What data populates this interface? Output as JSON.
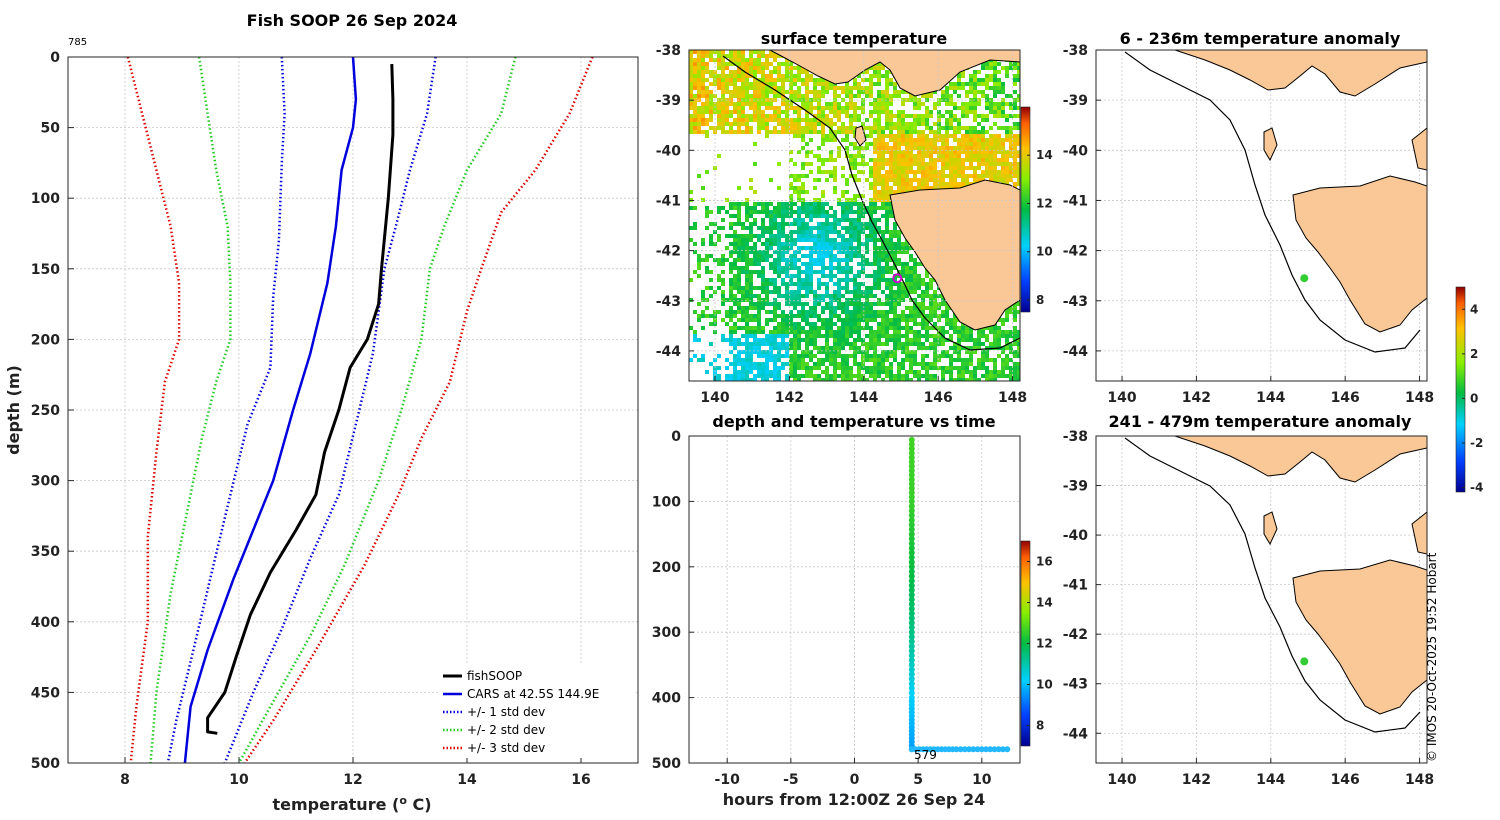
{
  "figure": {
    "credit": "© IMOS 20-Oct-2025 19:52 Hobart",
    "profile_count_label": "785"
  },
  "colors": {
    "fishsoop": "#000000",
    "cars": "#0000dd",
    "std1": "#0000dd",
    "std2": "#22cc22",
    "std3": "#dd0000",
    "land": "#f9c896",
    "track_marker": "#cc00cc",
    "anomaly_point": "#33cc33"
  },
  "profile_panel": {
    "title": "Fish SOOP 26 Sep 2024",
    "xlabel": "temperature (",
    "xlabel_sup": "o",
    "xlabel_unit": " C)",
    "ylabel": "depth (m)",
    "xticks": [
      "8",
      "10",
      "12",
      "14",
      "16"
    ],
    "yticks": [
      "0",
      "50",
      "100",
      "150",
      "200",
      "250",
      "300",
      "350",
      "400",
      "450",
      "500"
    ],
    "legend": [
      {
        "label": "fishSOOP",
        "style": "solid",
        "color": "#000000"
      },
      {
        "label": "CARS at 42.5S 144.9E",
        "style": "solid",
        "color": "#0000dd"
      },
      {
        "label": "+/- 1 std dev",
        "style": "dotted",
        "color": "#0000dd"
      },
      {
        "label": "+/- 2 std dev",
        "style": "dotted",
        "color": "#22cc22"
      },
      {
        "label": "+/- 3 std dev",
        "style": "dotted",
        "color": "#dd0000"
      }
    ]
  },
  "sst_panel": {
    "title": "surface temperature",
    "xticks": [
      "140",
      "142",
      "144",
      "146",
      "148"
    ],
    "yticks": [
      "-38",
      "-39",
      "-40",
      "-41",
      "-42",
      "-43",
      "-44"
    ],
    "cbar_ticks": [
      "8",
      "10",
      "12",
      "14"
    ]
  },
  "time_panel": {
    "title": "depth and temperature vs time",
    "xlabel": "hours from 12:00Z 26 Sep 24",
    "xticks": [
      "-10",
      "-5",
      "0",
      "5",
      "10"
    ],
    "yticks": [
      "0",
      "100",
      "200",
      "300",
      "400",
      "500"
    ],
    "cbar_ticks": [
      "8",
      "10",
      "12",
      "14",
      "16"
    ],
    "annotation": "579"
  },
  "anom_top": {
    "title": "6 - 236m temperature anomaly",
    "xticks": [
      "140",
      "142",
      "144",
      "146",
      "148"
    ],
    "yticks": [
      "-38",
      "-39",
      "-40",
      "-41",
      "-42",
      "-43",
      "-44"
    ]
  },
  "anom_bottom": {
    "title": "241 - 479m temperature anomaly",
    "xticks": [
      "140",
      "142",
      "144",
      "146",
      "148"
    ],
    "yticks": [
      "-38",
      "-39",
      "-40",
      "-41",
      "-42",
      "-43",
      "-44"
    ]
  },
  "anom_cbar": {
    "ticks": [
      "4",
      "2",
      "0",
      "-2",
      "-4"
    ]
  },
  "chart_data": [
    {
      "type": "line",
      "name": "temperature profile",
      "title": "Fish SOOP 26 Sep 2024",
      "xlabel": "temperature (o C)",
      "ylabel": "depth (m)",
      "xlim": [
        7,
        17
      ],
      "ylim": [
        500,
        0
      ],
      "series": [
        {
          "name": "fishSOOP",
          "points": [
            [
              12.68,
              5
            ],
            [
              12.7,
              30
            ],
            [
              12.7,
              55
            ],
            [
              12.62,
              100
            ],
            [
              12.5,
              150
            ],
            [
              12.45,
              175
            ],
            [
              12.25,
              200
            ],
            [
              11.95,
              220
            ],
            [
              11.75,
              250
            ],
            [
              11.5,
              280
            ],
            [
              11.35,
              310
            ],
            [
              11.0,
              335
            ],
            [
              10.55,
              365
            ],
            [
              10.2,
              395
            ],
            [
              9.95,
              425
            ],
            [
              9.75,
              450
            ],
            [
              9.45,
              468
            ],
            [
              9.45,
              478
            ],
            [
              9.62,
              479
            ]
          ]
        },
        {
          "name": "CARS at 42.5S 144.9E",
          "points": [
            [
              12.0,
              0
            ],
            [
              12.05,
              30
            ],
            [
              12.0,
              50
            ],
            [
              11.8,
              80
            ],
            [
              11.7,
              120
            ],
            [
              11.55,
              160
            ],
            [
              11.25,
              210
            ],
            [
              10.95,
              250
            ],
            [
              10.6,
              300
            ],
            [
              10.2,
              340
            ],
            [
              9.9,
              370
            ],
            [
              9.45,
              420
            ],
            [
              9.15,
              460
            ],
            [
              9.05,
              500
            ]
          ]
        },
        {
          "name": "-1 std dev",
          "points": [
            [
              10.75,
              0
            ],
            [
              10.8,
              40
            ],
            [
              10.75,
              75
            ],
            [
              10.7,
              130
            ],
            [
              10.6,
              170
            ],
            [
              10.55,
              220
            ],
            [
              10.15,
              260
            ],
            [
              9.85,
              310
            ],
            [
              9.55,
              360
            ],
            [
              9.2,
              420
            ],
            [
              8.9,
              470
            ],
            [
              8.75,
              500
            ]
          ]
        },
        {
          "name": "+1 std dev",
          "points": [
            [
              13.45,
              0
            ],
            [
              13.3,
              40
            ],
            [
              13.0,
              80
            ],
            [
              12.75,
              120
            ],
            [
              12.55,
              150
            ],
            [
              12.35,
              210
            ],
            [
              12.05,
              260
            ],
            [
              11.75,
              310
            ],
            [
              11.25,
              355
            ],
            [
              10.75,
              405
            ],
            [
              10.25,
              450
            ],
            [
              9.75,
              500
            ]
          ]
        },
        {
          "name": "-2 std dev",
          "points": [
            [
              9.3,
              0
            ],
            [
              9.45,
              40
            ],
            [
              9.6,
              80
            ],
            [
              9.8,
              120
            ],
            [
              9.85,
              160
            ],
            [
              9.85,
              200
            ],
            [
              9.6,
              230
            ],
            [
              9.35,
              270
            ],
            [
              9.1,
              320
            ],
            [
              8.8,
              380
            ],
            [
              8.55,
              450
            ],
            [
              8.45,
              500
            ]
          ]
        },
        {
          "name": "+2 std dev",
          "points": [
            [
              14.85,
              0
            ],
            [
              14.6,
              40
            ],
            [
              14.0,
              80
            ],
            [
              13.6,
              120
            ],
            [
              13.35,
              150
            ],
            [
              13.2,
              200
            ],
            [
              12.85,
              250
            ],
            [
              12.45,
              300
            ],
            [
              11.85,
              360
            ],
            [
              11.25,
              410
            ],
            [
              10.55,
              460
            ],
            [
              10.0,
              500
            ]
          ]
        },
        {
          "name": "-3 std dev",
          "points": [
            [
              8.05,
              0
            ],
            [
              8.3,
              40
            ],
            [
              8.55,
              80
            ],
            [
              8.8,
              120
            ],
            [
              8.95,
              160
            ],
            [
              8.95,
              200
            ],
            [
              8.7,
              230
            ],
            [
              8.55,
              280
            ],
            [
              8.4,
              340
            ],
            [
              8.4,
              400
            ],
            [
              8.2,
              460
            ],
            [
              8.1,
              500
            ]
          ]
        },
        {
          "name": "+3 std dev",
          "points": [
            [
              16.2,
              0
            ],
            [
              15.8,
              40
            ],
            [
              15.2,
              80
            ],
            [
              14.6,
              110
            ],
            [
              14.25,
              150
            ],
            [
              14.0,
              180
            ],
            [
              13.7,
              230
            ],
            [
              13.2,
              270
            ],
            [
              12.8,
              310
            ],
            [
              12.2,
              360
            ],
            [
              11.35,
              420
            ],
            [
              10.6,
              470
            ],
            [
              10.1,
              500
            ]
          ]
        }
      ]
    },
    {
      "type": "heatmap",
      "name": "surface temperature map",
      "title": "surface temperature",
      "xlim": [
        139.3,
        148.2
      ],
      "ylim": [
        -44.6,
        -38
      ],
      "colorbar_range": [
        7.5,
        16
      ],
      "marker": {
        "lon": 144.9,
        "lat": -42.55
      }
    },
    {
      "type": "scatter",
      "name": "depth and temperature vs time",
      "title": "depth and temperature vs time",
      "xlabel": "hours from 12:00Z 26 Sep 24",
      "xlim": [
        -13,
        13
      ],
      "ylim": [
        500,
        0
      ],
      "colorbar_range": [
        7,
        17
      ],
      "series": [
        {
          "name": "descent",
          "points": [
            [
              4.5,
              6,
              12.7
            ],
            [
              4.5,
              100,
              12.6
            ],
            [
              4.5,
              200,
              12.1
            ],
            [
              4.5,
              300,
              11.4
            ],
            [
              4.5,
              400,
              10.2
            ],
            [
              4.5,
              479,
              9.6
            ]
          ]
        },
        {
          "name": "bottom",
          "points": [
            [
              4.5,
              479,
              9.6
            ],
            [
              8,
              479,
              9.6
            ],
            [
              12,
              479,
              9.6
            ]
          ]
        }
      ]
    },
    {
      "type": "scatter",
      "name": "6 - 236m temperature anomaly",
      "title": "6 - 236m temperature anomaly",
      "xlim": [
        139.3,
        148.2
      ],
      "ylim": [
        -44.6,
        -38
      ],
      "colorbar_range": [
        -4.2,
        5
      ],
      "points": [
        {
          "lon": 144.9,
          "lat": -42.55,
          "anomaly": 0.3
        }
      ]
    },
    {
      "type": "scatter",
      "name": "241 - 479m temperature anomaly",
      "title": "241 - 479m temperature anomaly",
      "xlim": [
        139.3,
        148.2
      ],
      "ylim": [
        -44.6,
        -38
      ],
      "colorbar_range": [
        -4.2,
        5
      ],
      "points": [
        {
          "lon": 144.9,
          "lat": -42.55,
          "anomaly": 0.3
        }
      ]
    }
  ]
}
